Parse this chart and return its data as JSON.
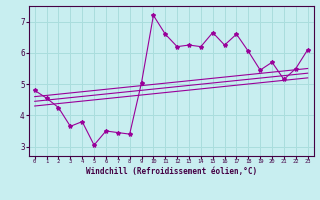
{
  "xlabel": "Windchill (Refroidissement éolien,°C)",
  "x_ticks": [
    0,
    1,
    2,
    3,
    4,
    5,
    6,
    7,
    8,
    9,
    10,
    11,
    12,
    13,
    14,
    15,
    16,
    17,
    18,
    19,
    20,
    21,
    22,
    23
  ],
  "y_ticks": [
    3,
    4,
    5,
    6,
    7
  ],
  "ylim": [
    2.7,
    7.5
  ],
  "xlim": [
    -0.5,
    23.5
  ],
  "bg_color": "#c8eef0",
  "grid_color": "#aadddd",
  "line_color": "#990099",
  "main_x": [
    0,
    1,
    2,
    3,
    4,
    5,
    6,
    7,
    8,
    9,
    10,
    11,
    12,
    13,
    14,
    15,
    16,
    17,
    18,
    19,
    20,
    21,
    22,
    23
  ],
  "main_y": [
    4.8,
    4.55,
    4.25,
    3.65,
    3.8,
    3.05,
    3.5,
    3.45,
    3.4,
    5.05,
    7.2,
    6.6,
    6.2,
    6.25,
    6.2,
    6.65,
    6.25,
    6.6,
    6.05,
    5.45,
    5.7,
    5.15,
    5.5,
    6.1
  ],
  "reg1_start": 4.3,
  "reg1_end": 5.2,
  "reg2_start": 4.45,
  "reg2_end": 5.35,
  "reg3_start": 4.6,
  "reg3_end": 5.5
}
